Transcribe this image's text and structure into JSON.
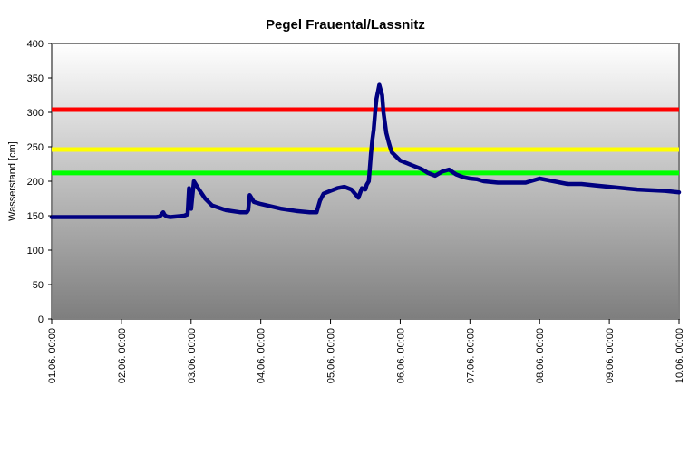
{
  "chart_data": {
    "type": "line",
    "title": "Pegel Frauental/Lassnitz",
    "xlabel": "",
    "ylabel": "Wasserstand [cm]",
    "ylim": [
      0,
      400
    ],
    "yticks": [
      0,
      50,
      100,
      150,
      200,
      250,
      300,
      350,
      400
    ],
    "x_tick_labels": [
      "01.06. 00:00",
      "02.06. 00:00",
      "03.06. 00:00",
      "04.06. 00:00",
      "05.06. 00:00",
      "06.06. 00:00",
      "07.06. 00:00",
      "08.06. 00:00",
      "09.06. 00:00",
      "10.06. 00:00"
    ],
    "x_unit": "days since 01.06. 00:00",
    "xlim": [
      0,
      9
    ],
    "grid": false,
    "legend": "none",
    "thresholds": [
      {
        "value": 304,
        "color": "#ff0000"
      },
      {
        "value": 246,
        "color": "#ffff00"
      },
      {
        "value": 212,
        "color": "#00ff00"
      }
    ],
    "series": [
      {
        "color": "#000080",
        "x": [
          0,
          0.5,
          1.0,
          1.5,
          1.55,
          1.6,
          1.62,
          1.65,
          1.7,
          1.9,
          1.95,
          1.97,
          2.0,
          2.02,
          2.04,
          2.1,
          2.2,
          2.3,
          2.5,
          2.7,
          2.8,
          2.82,
          2.84,
          2.9,
          3.0,
          3.3,
          3.5,
          3.7,
          3.8,
          3.85,
          3.9,
          4.0,
          4.1,
          4.2,
          4.3,
          4.35,
          4.4,
          4.45,
          4.5,
          4.52,
          4.55,
          4.58,
          4.6,
          4.62,
          4.64,
          4.66,
          4.7,
          4.74,
          4.76,
          4.8,
          4.84,
          4.86,
          4.88,
          4.95,
          5.0,
          5.1,
          5.2,
          5.3,
          5.35,
          5.4,
          5.5,
          5.6,
          5.7,
          5.8,
          5.9,
          6.0,
          6.1,
          6.2,
          6.3,
          6.4,
          6.5,
          6.6,
          6.8,
          7.0,
          7.2,
          7.4,
          7.5,
          7.6,
          7.8,
          8.0,
          8.2,
          8.4,
          8.6,
          8.8,
          9.0
        ],
        "y": [
          148,
          148,
          148,
          148,
          149,
          155,
          151,
          149,
          148,
          150,
          152,
          190,
          160,
          180,
          200,
          190,
          175,
          165,
          158,
          155,
          155,
          158,
          180,
          170,
          167,
          160,
          157,
          155,
          155,
          172,
          182,
          186,
          190,
          192,
          188,
          182,
          176,
          190,
          188,
          195,
          200,
          240,
          260,
          275,
          300,
          320,
          340,
          325,
          300,
          270,
          255,
          248,
          242,
          235,
          230,
          226,
          222,
          218,
          215,
          212,
          208,
          214,
          217,
          210,
          206,
          204,
          203,
          200,
          199,
          198,
          198,
          198,
          198,
          204,
          200,
          196,
          196,
          196,
          194,
          192,
          190,
          188,
          187,
          186,
          184
        ]
      }
    ]
  }
}
